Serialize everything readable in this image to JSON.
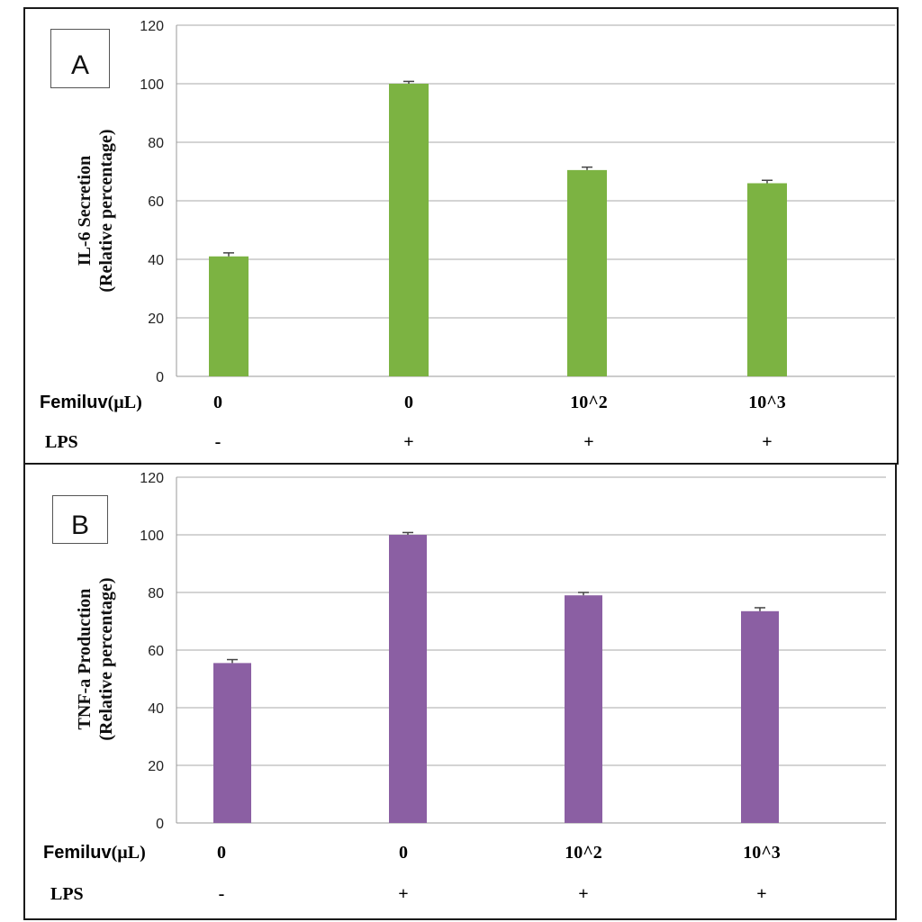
{
  "chart_data": [
    {
      "type": "bar",
      "panel_label": "A",
      "title": "",
      "ylabel_lines": [
        "IL-6 Secretion",
        "(Relative percentage)"
      ],
      "xlabel": "",
      "ylim": [
        0,
        120
      ],
      "yticks": [
        "0",
        "20",
        "40",
        "60",
        "80",
        "100",
        "120"
      ],
      "grid": true,
      "color": "#7CB342",
      "error_color": "#444444",
      "values": [
        41,
        100,
        70.5,
        66
      ],
      "errors": [
        1.2,
        0.8,
        1.0,
        1.0
      ],
      "rows": [
        {
          "name": "Femiluv",
          "unit": "(µL)",
          "values": [
            "0",
            "0",
            "10^2",
            "10^3"
          ]
        },
        {
          "name": "LPS",
          "unit": "",
          "values": [
            "-",
            "+",
            "+",
            "+"
          ]
        }
      ]
    },
    {
      "type": "bar",
      "panel_label": "B",
      "title": "",
      "ylabel_lines": [
        "TNF-a Production",
        "(Relative percentage)"
      ],
      "xlabel": "",
      "ylim": [
        0,
        120
      ],
      "yticks": [
        "0",
        "20",
        "40",
        "60",
        "80",
        "100",
        "120"
      ],
      "grid": true,
      "color": "#8B5FA3",
      "error_color": "#444444",
      "values": [
        55.5,
        100,
        79,
        73.5
      ],
      "errors": [
        1.2,
        0.8,
        1.0,
        1.2
      ],
      "rows": [
        {
          "name": "Femiluv",
          "unit": "(µL)",
          "values": [
            "0",
            "0",
            "10^2",
            "10^3"
          ]
        },
        {
          "name": "LPS",
          "unit": "",
          "values": [
            "-",
            "+",
            "+",
            "+"
          ]
        }
      ]
    }
  ]
}
